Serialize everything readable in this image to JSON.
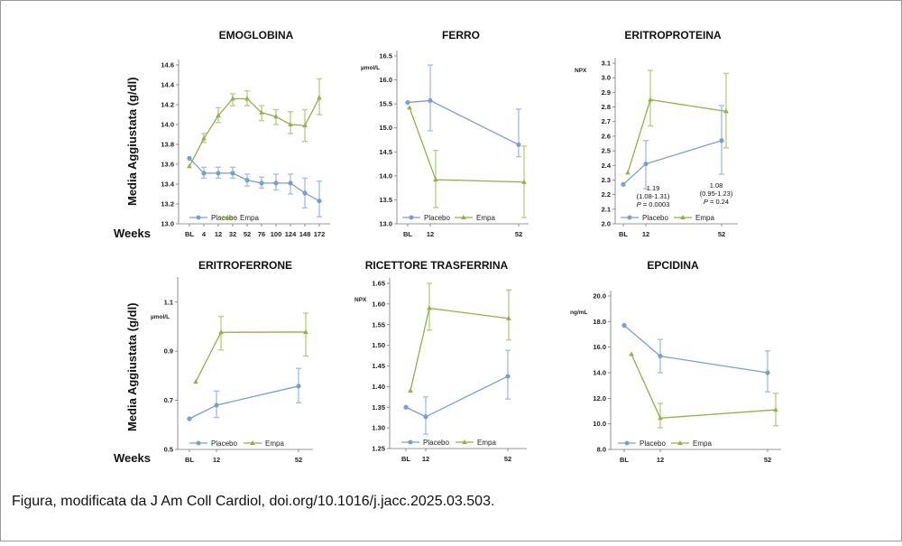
{
  "figure": {
    "ylabel": "Media Aggiustata (g/dl)",
    "weeks_label": "Weeks",
    "caption": "Figura, modificata da J Am Coll Cardiol, doi.org/10.1016/j.jacc.2025.03.503.",
    "colors": {
      "placebo": "#7a9fcf",
      "empa": "#8fb04a"
    },
    "legend": {
      "placebo": "Placebo",
      "empa": "Empa"
    }
  },
  "chart_data": [
    {
      "type": "line",
      "title": "EMOGLOBINA",
      "unit": "",
      "xlabel": "Weeks",
      "ylabel": "Media Aggiustata (g/dl)",
      "categories": [
        "BL",
        "4",
        "12",
        "32",
        "52",
        "76",
        "100",
        "124",
        "148",
        "172"
      ],
      "ylim": [
        13.0,
        14.6
      ],
      "yticks": [
        "13.0",
        "13.2",
        "13.4",
        "13.6",
        "13.8",
        "14.0",
        "14.2",
        "14.4",
        "14.6"
      ],
      "legend_position": "bottom-left",
      "series": [
        {
          "name": "Placebo",
          "marker": "circle",
          "values": [
            13.66,
            13.51,
            13.51,
            13.51,
            13.44,
            13.41,
            13.41,
            13.41,
            13.31,
            13.23
          ],
          "err_low": [
            null,
            13.46,
            13.46,
            13.46,
            13.38,
            13.36,
            13.34,
            13.3,
            13.16,
            13.07
          ],
          "err_high": [
            null,
            13.57,
            13.57,
            13.57,
            13.5,
            13.47,
            13.5,
            13.5,
            13.46,
            13.43
          ]
        },
        {
          "name": "Empa",
          "marker": "triangle",
          "values": [
            13.58,
            13.86,
            14.09,
            14.26,
            14.26,
            14.12,
            14.08,
            14.0,
            13.99,
            14.27
          ],
          "err_low": [
            null,
            13.82,
            14.02,
            14.19,
            14.19,
            14.04,
            14.0,
            13.91,
            13.83,
            14.1
          ],
          "err_high": [
            null,
            13.91,
            14.17,
            14.31,
            14.34,
            14.19,
            14.15,
            14.13,
            14.15,
            14.46
          ]
        }
      ]
    },
    {
      "type": "line",
      "title": "FERRO",
      "unit": "µmol/L",
      "categories": [
        "BL",
        "12",
        "52"
      ],
      "ylim": [
        13.0,
        16.5
      ],
      "yticks": [
        "13.0",
        "13.5",
        "14.0",
        "14.5",
        "15.0",
        "15.5",
        "16.0",
        "16.5"
      ],
      "legend_position": "bottom-left",
      "series": [
        {
          "name": "Placebo",
          "marker": "circle",
          "values": [
            15.53,
            15.57,
            14.65
          ],
          "err_low": [
            null,
            14.94,
            14.4
          ],
          "err_high": [
            null,
            16.31,
            15.39
          ]
        },
        {
          "name": "Empa",
          "marker": "triangle",
          "values": [
            15.42,
            13.92,
            13.87
          ],
          "err_low": [
            null,
            13.34,
            13.13
          ],
          "err_high": [
            null,
            14.53,
            14.62
          ]
        }
      ]
    },
    {
      "type": "line",
      "title": "ERITROPROTEINA",
      "unit": "NPX",
      "categories": [
        "BL",
        "12",
        "52"
      ],
      "ylim": [
        2.0,
        3.1
      ],
      "yticks": [
        "2.0",
        "2.1",
        "2.2",
        "2.3",
        "2.4",
        "2.5",
        "2.6",
        "2.7",
        "2.8",
        "2.9",
        "3.0",
        "3.1"
      ],
      "legend_position": "bottom-left",
      "annotations": [
        {
          "at": "12",
          "lines": [
            "1.19",
            "(1.08-1.31)",
            "P = 0.0003"
          ]
        },
        {
          "at": "52",
          "lines": [
            "1.08",
            "(0.95-1.23)",
            "P = 0.24"
          ]
        }
      ],
      "series": [
        {
          "name": "Placebo",
          "marker": "circle",
          "values": [
            2.27,
            2.41,
            2.57
          ],
          "err_low": [
            null,
            2.24,
            2.34
          ],
          "err_high": [
            null,
            2.57,
            2.81
          ]
        },
        {
          "name": "Empa",
          "marker": "triangle",
          "values": [
            2.35,
            2.85,
            2.77
          ],
          "err_low": [
            null,
            2.67,
            2.52
          ],
          "err_high": [
            null,
            3.05,
            3.03
          ]
        }
      ]
    },
    {
      "type": "line",
      "title": "ERITROFERRONE",
      "unit": "µmol/L",
      "xlabel": "Weeks",
      "ylabel": "Media Aggiustata (g/dl)",
      "categories": [
        "BL",
        "12",
        "52"
      ],
      "ylim": [
        0.5,
        1.18
      ],
      "yticks": [
        "0.5",
        "0.7",
        "0.9",
        "1.1"
      ],
      "legend_position": "bottom-left",
      "series": [
        {
          "name": "Placebo",
          "marker": "circle",
          "values": [
            0.625,
            0.68,
            0.758
          ],
          "err_low": [
            null,
            0.63,
            0.69
          ],
          "err_high": [
            null,
            0.738,
            0.83
          ]
        },
        {
          "name": "Empa",
          "marker": "triangle",
          "values": [
            0.775,
            0.977,
            0.978
          ],
          "err_low": [
            null,
            0.905,
            0.88
          ],
          "err_high": [
            null,
            1.042,
            1.055
          ]
        }
      ]
    },
    {
      "type": "line",
      "title": "RICETTORE TRASFERRINA",
      "unit": "NPX",
      "categories": [
        "BL",
        "12",
        "52"
      ],
      "ylim": [
        1.25,
        1.65
      ],
      "yticks": [
        "1.25",
        "1.30",
        "1.35",
        "1.40",
        "1.45",
        "1.50",
        "1.55",
        "1.60",
        "1.65"
      ],
      "legend_position": "bottom-left",
      "series": [
        {
          "name": "Placebo",
          "marker": "circle",
          "values": [
            1.35,
            1.327,
            1.425
          ],
          "err_low": [
            null,
            1.285,
            1.37
          ],
          "err_high": [
            null,
            1.375,
            1.488
          ]
        },
        {
          "name": "Empa",
          "marker": "triangle",
          "values": [
            1.39,
            1.59,
            1.565
          ],
          "err_low": [
            null,
            1.537,
            1.513
          ],
          "err_high": [
            null,
            1.65,
            1.634
          ]
        }
      ]
    },
    {
      "type": "line",
      "title": "EPCIDINA",
      "unit": "ng/mL",
      "categories": [
        "BL",
        "12",
        "52"
      ],
      "ylim": [
        8.0,
        20.0
      ],
      "yticks": [
        "8.0",
        "10.0",
        "12.0",
        "14.0",
        "16.0",
        "18.0",
        "20.0"
      ],
      "legend_position": "bottom-left",
      "series": [
        {
          "name": "Placebo",
          "marker": "circle",
          "values": [
            17.7,
            15.3,
            14.0
          ],
          "err_low": [
            null,
            14.0,
            12.5
          ],
          "err_high": [
            null,
            16.6,
            15.7
          ]
        },
        {
          "name": "Empa",
          "marker": "triangle",
          "values": [
            15.45,
            10.45,
            11.1
          ],
          "err_low": [
            null,
            9.7,
            9.85
          ],
          "err_high": [
            null,
            11.6,
            12.4
          ]
        }
      ]
    }
  ]
}
